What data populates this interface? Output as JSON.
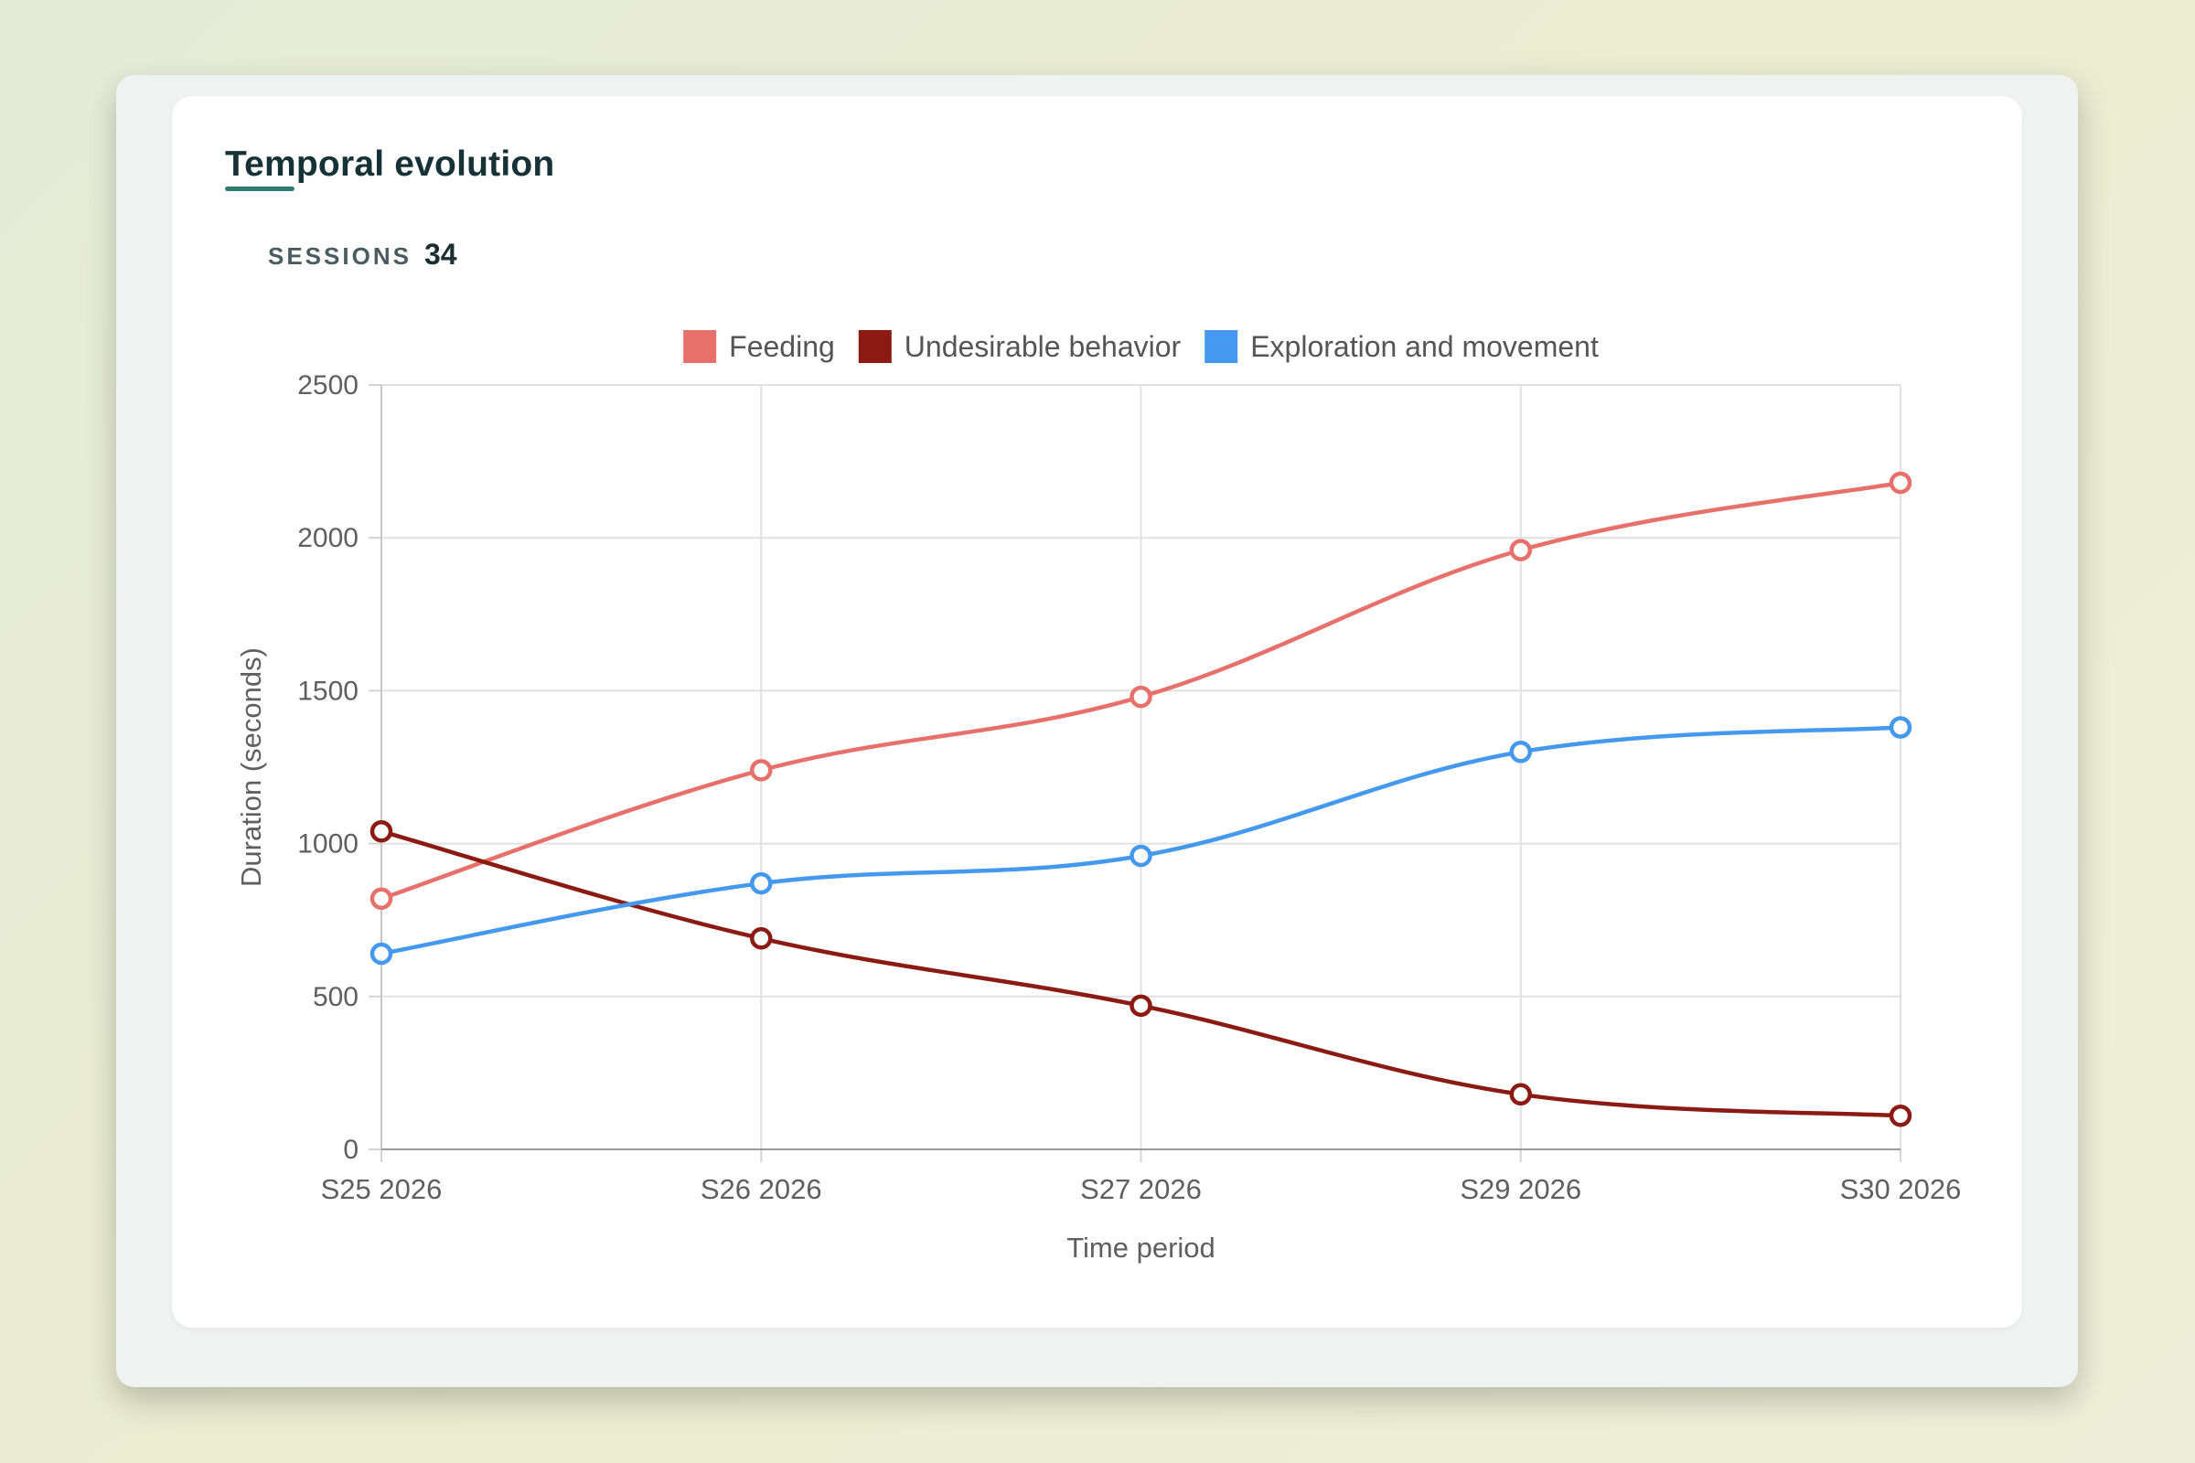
{
  "card": {
    "title": "Temporal evolution"
  },
  "summary": {
    "sessions_label": "SESSIONS",
    "sessions_value": "34"
  },
  "chart_data": {
    "type": "line",
    "title": "",
    "xlabel": "Time period",
    "ylabel": "Duration (seconds)",
    "categories": [
      "S25 2026",
      "S26 2026",
      "S27 2026",
      "S29 2026",
      "S30 2026"
    ],
    "ylim": [
      0,
      2500
    ],
    "yticks": [
      0,
      500,
      1000,
      1500,
      2000,
      2500
    ],
    "grid": true,
    "legend": "top-center",
    "series": [
      {
        "name": "Feeding",
        "color": "#e8706a",
        "values": [
          820,
          1240,
          1480,
          1960,
          2180
        ]
      },
      {
        "name": "Undesirable behavior",
        "color": "#8b1a12",
        "values": [
          1040,
          690,
          470,
          180,
          110
        ]
      },
      {
        "name": "Exploration and movement",
        "color": "#4499ee",
        "values": [
          640,
          870,
          960,
          1300,
          1380
        ]
      }
    ]
  }
}
